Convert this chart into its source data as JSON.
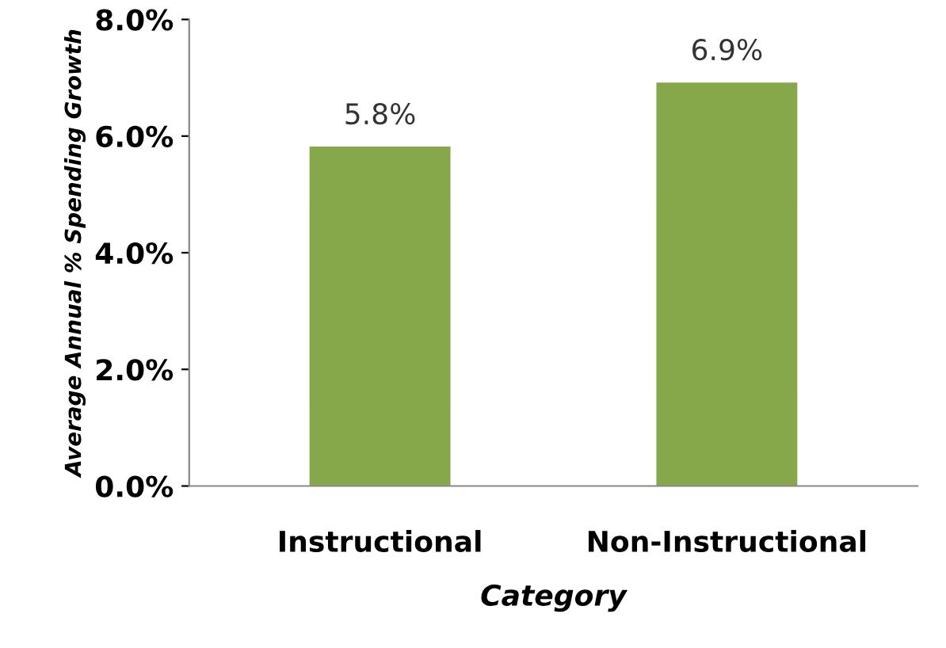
{
  "chart_data": {
    "type": "bar",
    "xlabel": "Category",
    "ylabel": "Average Annual % Spending Growth",
    "categories": [
      "Instructional",
      "Non-Instructional"
    ],
    "values": [
      5.8,
      6.9
    ],
    "value_labels": [
      "5.8%",
      "6.9%"
    ],
    "color": "#87a84a",
    "ylim": [
      0,
      8
    ],
    "yticks": [
      {
        "value": 0,
        "label": "0.0%"
      },
      {
        "value": 2,
        "label": "2.0%"
      },
      {
        "value": 4,
        "label": "4.0%"
      },
      {
        "value": 6,
        "label": "6.0%"
      },
      {
        "value": 8,
        "label": "8.0%"
      }
    ],
    "grid": false,
    "legend": false
  }
}
